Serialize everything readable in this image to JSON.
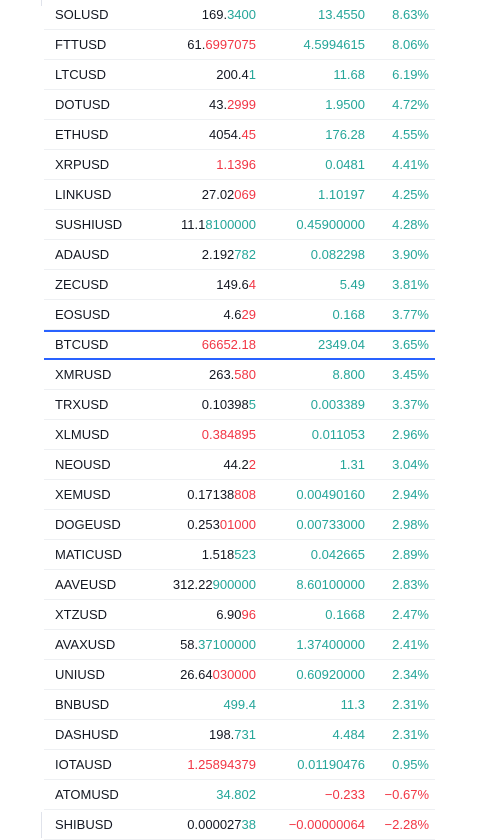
{
  "watchlist": {
    "colors": {
      "text": "#131722",
      "up": "#26a69a",
      "down": "#f23645",
      "selected": "#2962ff"
    },
    "rows": [
      {
        "symbol": "SOLUSD",
        "price_a": "169.",
        "price_b": "3400",
        "price_dir": "up",
        "change": "13.4550",
        "change_dir": "up",
        "pct": "8.63%",
        "pct_dir": "up"
      },
      {
        "symbol": "FTTUSD",
        "price_a": "61.",
        "price_b": "6997075",
        "price_dir": "down",
        "change": "4.5994615",
        "change_dir": "up",
        "pct": "8.06%",
        "pct_dir": "up"
      },
      {
        "symbol": "LTCUSD",
        "price_a": "200.4",
        "price_b": "1",
        "price_dir": "up",
        "change": "11.68",
        "change_dir": "up",
        "pct": "6.19%",
        "pct_dir": "up"
      },
      {
        "symbol": "DOTUSD",
        "price_a": "43.",
        "price_b": "2999",
        "price_dir": "down",
        "change": "1.9500",
        "change_dir": "up",
        "pct": "4.72%",
        "pct_dir": "up"
      },
      {
        "symbol": "ETHUSD",
        "price_a": "4054.",
        "price_b": "45",
        "price_dir": "down",
        "change": "176.28",
        "change_dir": "up",
        "pct": "4.55%",
        "pct_dir": "up"
      },
      {
        "symbol": "XRPUSD",
        "price_a": "",
        "price_b": "1.1396",
        "price_dir": "down",
        "change": "0.0481",
        "change_dir": "up",
        "pct": "4.41%",
        "pct_dir": "up"
      },
      {
        "symbol": "LINKUSD",
        "price_a": "27.02",
        "price_b": "069",
        "price_dir": "down",
        "change": "1.10197",
        "change_dir": "up",
        "pct": "4.25%",
        "pct_dir": "up"
      },
      {
        "symbol": "SUSHIUSD",
        "price_a": "11.1",
        "price_b": "8100000",
        "price_dir": "up",
        "change": "0.45900000",
        "change_dir": "up",
        "pct": "4.28%",
        "pct_dir": "up"
      },
      {
        "symbol": "ADAUSD",
        "price_a": "2.192",
        "price_b": "782",
        "price_dir": "up",
        "change": "0.082298",
        "change_dir": "up",
        "pct": "3.90%",
        "pct_dir": "up"
      },
      {
        "symbol": "ZECUSD",
        "price_a": "149.6",
        "price_b": "4",
        "price_dir": "down",
        "change": "5.49",
        "change_dir": "up",
        "pct": "3.81%",
        "pct_dir": "up"
      },
      {
        "symbol": "EOSUSD",
        "price_a": "4.6",
        "price_b": "29",
        "price_dir": "down",
        "change": "0.168",
        "change_dir": "up",
        "pct": "3.77%",
        "pct_dir": "up"
      },
      {
        "symbol": "BTCUSD",
        "price_a": "",
        "price_b": "66652.18",
        "price_dir": "down",
        "change": "2349.04",
        "change_dir": "up",
        "pct": "3.65%",
        "pct_dir": "up",
        "selected": true
      },
      {
        "symbol": "XMRUSD",
        "price_a": "263.",
        "price_b": "580",
        "price_dir": "down",
        "change": "8.800",
        "change_dir": "up",
        "pct": "3.45%",
        "pct_dir": "up"
      },
      {
        "symbol": "TRXUSD",
        "price_a": "0.10398",
        "price_b": "5",
        "price_dir": "up",
        "change": "0.003389",
        "change_dir": "up",
        "pct": "3.37%",
        "pct_dir": "up"
      },
      {
        "symbol": "XLMUSD",
        "price_a": "",
        "price_b": "0.384895",
        "price_dir": "down",
        "change": "0.011053",
        "change_dir": "up",
        "pct": "2.96%",
        "pct_dir": "up"
      },
      {
        "symbol": "NEOUSD",
        "price_a": "44.2",
        "price_b": "2",
        "price_dir": "down",
        "change": "1.31",
        "change_dir": "up",
        "pct": "3.04%",
        "pct_dir": "up"
      },
      {
        "symbol": "XEMUSD",
        "price_a": "0.17138",
        "price_b": "808",
        "price_dir": "down",
        "change": "0.00490160",
        "change_dir": "up",
        "pct": "2.94%",
        "pct_dir": "up"
      },
      {
        "symbol": "DOGEUSD",
        "price_a": "0.253",
        "price_b": "01000",
        "price_dir": "down",
        "change": "0.00733000",
        "change_dir": "up",
        "pct": "2.98%",
        "pct_dir": "up"
      },
      {
        "symbol": "MATICUSD",
        "price_a": "1.518",
        "price_b": "523",
        "price_dir": "up",
        "change": "0.042665",
        "change_dir": "up",
        "pct": "2.89%",
        "pct_dir": "up"
      },
      {
        "symbol": "AAVEUSD",
        "price_a": "312.22",
        "price_b": "900000",
        "price_dir": "up",
        "change": "8.60100000",
        "change_dir": "up",
        "pct": "2.83%",
        "pct_dir": "up"
      },
      {
        "symbol": "XTZUSD",
        "price_a": "6.90",
        "price_b": "96",
        "price_dir": "down",
        "change": "0.1668",
        "change_dir": "up",
        "pct": "2.47%",
        "pct_dir": "up"
      },
      {
        "symbol": "AVAXUSD",
        "price_a": "58.",
        "price_b": "37100000",
        "price_dir": "up",
        "change": "1.37400000",
        "change_dir": "up",
        "pct": "2.41%",
        "pct_dir": "up"
      },
      {
        "symbol": "UNIUSD",
        "price_a": "26.64",
        "price_b": "030000",
        "price_dir": "down",
        "change": "0.60920000",
        "change_dir": "up",
        "pct": "2.34%",
        "pct_dir": "up"
      },
      {
        "symbol": "BNBUSD",
        "price_a": "",
        "price_b": "499.4",
        "price_dir": "up",
        "change": "11.3",
        "change_dir": "up",
        "pct": "2.31%",
        "pct_dir": "up"
      },
      {
        "symbol": "DASHUSD",
        "price_a": "198.",
        "price_b": "731",
        "price_dir": "up",
        "change": "4.484",
        "change_dir": "up",
        "pct": "2.31%",
        "pct_dir": "up"
      },
      {
        "symbol": "IOTAUSD",
        "price_a": "",
        "price_b": "1.25894379",
        "price_dir": "down",
        "change": "0.01190476",
        "change_dir": "up",
        "pct": "0.95%",
        "pct_dir": "up"
      },
      {
        "symbol": "ATOMUSD",
        "price_a": "",
        "price_b": "34.802",
        "price_dir": "up",
        "change": "−0.233",
        "change_dir": "down",
        "pct": "−0.67%",
        "pct_dir": "down"
      },
      {
        "symbol": "SHIBUSD",
        "price_a": "0.000027",
        "price_b": "38",
        "price_dir": "up",
        "change": "−0.00000064",
        "change_dir": "down",
        "pct": "−2.28%",
        "pct_dir": "down"
      }
    ]
  }
}
